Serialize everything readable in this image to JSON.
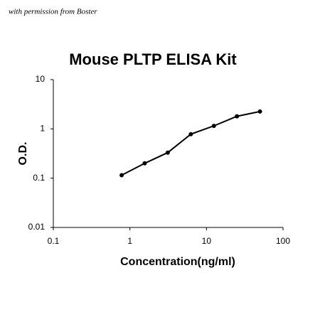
{
  "chart_data": {
    "type": "line",
    "title": "Mouse PLTP ELISA Kit",
    "annotation": "with permission from Boster",
    "x_label": "Concentration(ng/ml)",
    "y_label": "O.D.",
    "x": [
      0.78,
      1.56,
      3.12,
      6.25,
      12.5,
      25,
      50
    ],
    "series": [
      {
        "color": "#000000",
        "values": [
          0.115,
          0.2,
          0.33,
          0.78,
          1.15,
          1.8,
          2.25
        ]
      }
    ],
    "log_scale": true,
    "xlim": [
      0.1,
      100
    ],
    "xticks": [
      0.1,
      1,
      10,
      100
    ],
    "ylim": [
      0.01,
      10
    ],
    "yticks": [
      0.01,
      0.1,
      1,
      10
    ]
  }
}
